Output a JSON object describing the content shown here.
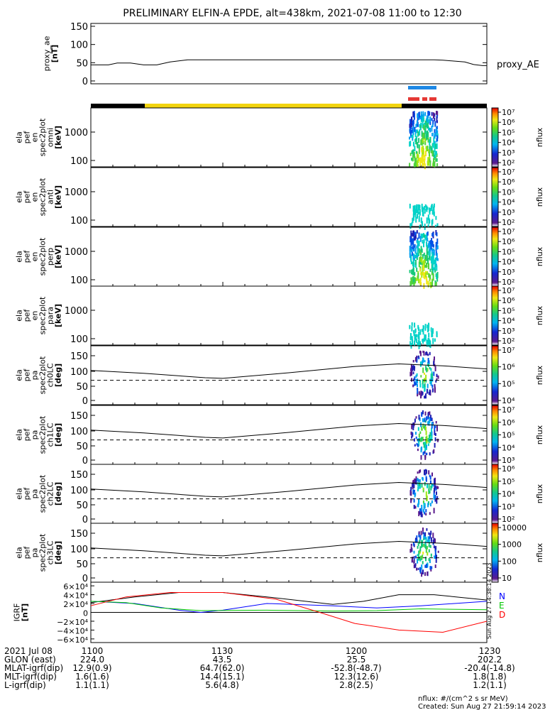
{
  "title": "PRELIMINARY ELFIN-A EPDE, alt=438km, 2021-07-08 11:00 to 12:30",
  "colors": {
    "sci_bar": "#1e88e5",
    "ibo_bar": "#e53935",
    "day_bar": "#f2d40f",
    "night_bar": "#000000"
  },
  "chart_data": [
    {
      "type": "line",
      "ylabel": [
        "proxy_ae",
        "[nT]"
      ],
      "yticks": [
        "150",
        "100",
        "50",
        "0"
      ],
      "ylim": [
        0,
        150
      ],
      "series_label": "proxy_AE",
      "x": [
        0,
        4,
        6,
        9,
        12,
        15,
        18,
        22,
        27,
        34,
        42,
        50,
        58,
        62,
        65,
        67,
        69,
        71,
        73,
        75,
        78,
        80,
        82,
        85,
        87,
        89,
        90
      ],
      "y": [
        44,
        44,
        49,
        49,
        44,
        44,
        52,
        58,
        58,
        58,
        58,
        58,
        58,
        58,
        58,
        58,
        58,
        58,
        58,
        58,
        58,
        57,
        55,
        52,
        45,
        42,
        42
      ]
    },
    {
      "type": "heatmap",
      "rows": [
        {
          "ylabel": [
            "ela",
            "pef",
            "en",
            "spec2plot",
            "omni",
            "[keV]"
          ],
          "yticks": [
            "1000",
            "100"
          ],
          "cbticks": [
            "10⁷",
            "10⁶",
            "10⁵",
            "10⁴",
            "10³",
            "10²"
          ],
          "cblabel": "nflux"
        },
        {
          "ylabel": [
            "ela",
            "pef",
            "en",
            "spec2plot",
            "anti",
            "[keV]"
          ],
          "yticks": [
            "1000",
            "100"
          ],
          "cbticks": [
            "10⁷",
            "10⁶",
            "10⁵",
            "10⁴",
            "10³",
            "10²"
          ],
          "cblabel": "nflux"
        },
        {
          "ylabel": [
            "ela",
            "pef",
            "en",
            "spec2plot",
            "perp",
            "[keV]"
          ],
          "yticks": [
            "1000",
            "100"
          ],
          "cbticks": [
            "10⁷",
            "10⁶",
            "10⁵",
            "10⁴",
            "10³",
            "10²"
          ],
          "cblabel": "nflux"
        },
        {
          "ylabel": [
            "ela",
            "pef",
            "en",
            "spec2plot",
            "para",
            "[keV]"
          ],
          "yticks": [
            "1000",
            "100"
          ],
          "cbticks": [
            "10⁷",
            "10⁶",
            "10⁵",
            "10⁴",
            "10³",
            "10²"
          ],
          "cblabel": "nflux"
        },
        {
          "ylabel": [
            "ela",
            "pef",
            "pa",
            "spec2plot",
            "ch0LC",
            "[deg]"
          ],
          "yticks": [
            "150",
            "100",
            "50",
            "0"
          ],
          "cbticks": [
            "10⁷",
            "10⁶",
            "10⁵",
            "10⁴"
          ],
          "cblabel": "nflux"
        },
        {
          "ylabel": [
            "ela",
            "pef",
            "pa",
            "spec2plot",
            "ch1LC",
            "[deg]"
          ],
          "yticks": [
            "150",
            "100",
            "50",
            "0"
          ],
          "cbticks": [
            "10⁷",
            "10⁶",
            "10⁵",
            "10⁴",
            "10³"
          ],
          "cblabel": "nflux"
        },
        {
          "ylabel": [
            "ela",
            "pef",
            "pa",
            "spec2plot",
            "ch2LC",
            "[deg]"
          ],
          "yticks": [
            "150",
            "100",
            "50",
            "0"
          ],
          "cbticks": [
            "10⁶",
            "10⁵",
            "10⁴",
            "10³",
            "10²"
          ],
          "cblabel": "nflux"
        },
        {
          "ylabel": [
            "ela",
            "pef",
            "pa",
            "spec2plot",
            "ch3LC",
            "[deg]"
          ],
          "yticks": [
            "150",
            "100",
            "50",
            "0"
          ],
          "cbticks": [
            "10000",
            "1000",
            "100",
            "10"
          ],
          "cblabel": "nflux"
        }
      ]
    },
    {
      "type": "line",
      "ylabel": [
        "IGRF",
        "[nT]"
      ],
      "yticks": [
        "6×10⁴",
        "4×10⁴",
        "2×10⁴",
        "0",
        "−2×10⁴",
        "−4×10⁴",
        "−6×10⁴"
      ],
      "ylim": [
        -60000,
        60000
      ],
      "series": [
        {
          "name": "N",
          "color": "#0000ff"
        },
        {
          "name": "E",
          "color": "#00c800"
        },
        {
          "name": "D",
          "color": "#ff0000"
        }
      ],
      "side_stamp": "Sun Aug 27 14:38:14 2023"
    }
  ],
  "footer": {
    "rows": [
      {
        "label": "2021 Jul 08",
        "values": [
          "1100",
          "1130",
          "1200",
          "1230"
        ]
      },
      {
        "label": "GLON (east)",
        "values": [
          "224.0",
          "43.5",
          "25.5",
          "202.2"
        ]
      },
      {
        "label": "MLAT-igrf(dip)",
        "values": [
          "12.9(0.9)",
          "64.7(62.0)",
          "-52.8(-48.7)",
          "-20.4(-14.8)"
        ]
      },
      {
        "label": "MLT-igrf(dip)",
        "values": [
          "1.6(1.6)",
          "14.4(15.1)",
          "12.3(12.6)",
          "1.8(1.8)"
        ]
      },
      {
        "label": "L-igrf(dip)",
        "values": [
          "1.1(1.1)",
          "5.6(4.8)",
          "2.8(2.5)",
          "1.2(1.1)"
        ]
      }
    ],
    "nflux_note": "nflux: #/(cm^2 s sr MeV)",
    "created": "Created: Sun Aug 27 21:59:14 2023"
  }
}
